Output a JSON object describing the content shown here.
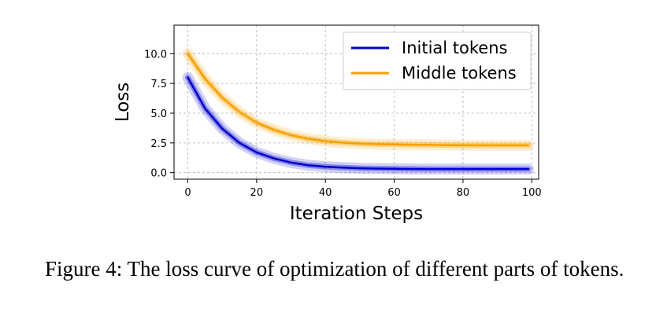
{
  "chart_data": {
    "type": "line",
    "title": "",
    "xlabel": "Iteration Steps",
    "ylabel": "Loss",
    "xlim": [
      -4,
      102
    ],
    "ylim": [
      -0.55,
      12.4
    ],
    "xticks": [
      0,
      20,
      40,
      60,
      80,
      100
    ],
    "yticks": [
      0.0,
      2.5,
      5.0,
      7.5,
      10.0
    ],
    "xtick_labels": [
      "0",
      "20",
      "40",
      "60",
      "80",
      "100"
    ],
    "ytick_labels": [
      "0.0",
      "2.5",
      "5.0",
      "7.5",
      "10.0"
    ],
    "grid": true,
    "legend_position": "top-right",
    "series": [
      {
        "name": "Initial tokens",
        "color": "#0000cc",
        "x": [
          0,
          5,
          10,
          15,
          20,
          25,
          30,
          35,
          40,
          45,
          50,
          55,
          60,
          65,
          70,
          75,
          80,
          85,
          90,
          95,
          99
        ],
        "values": [
          8.0,
          5.4,
          3.7,
          2.5,
          1.7,
          1.2,
          0.85,
          0.62,
          0.5,
          0.42,
          0.37,
          0.34,
          0.32,
          0.31,
          0.3,
          0.3,
          0.3,
          0.3,
          0.3,
          0.3,
          0.3
        ]
      },
      {
        "name": "Middle tokens",
        "color": "#f5a000",
        "x": [
          0,
          5,
          10,
          15,
          20,
          25,
          30,
          35,
          40,
          45,
          50,
          55,
          60,
          65,
          70,
          75,
          80,
          85,
          90,
          95,
          99
        ],
        "values": [
          10.0,
          7.9,
          6.3,
          5.1,
          4.2,
          3.6,
          3.15,
          2.85,
          2.65,
          2.52,
          2.45,
          2.4,
          2.37,
          2.35,
          2.33,
          2.32,
          2.31,
          2.3,
          2.3,
          2.3,
          2.3
        ]
      }
    ]
  },
  "caption": "Figure 4: The loss curve of optimization of different parts of tokens."
}
